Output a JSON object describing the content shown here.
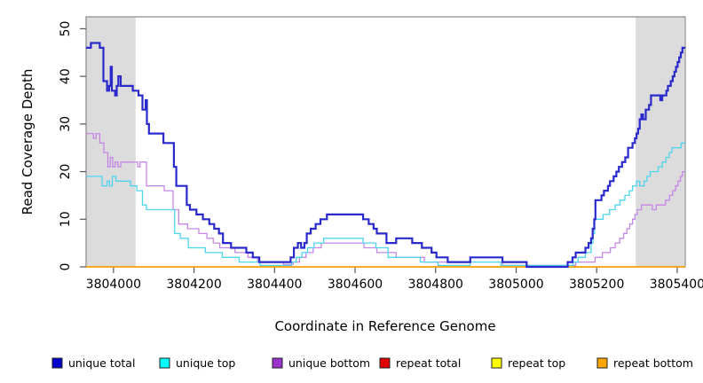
{
  "chart_data": {
    "type": "step-line",
    "title": "",
    "xlabel": "Coordinate in Reference Genome",
    "ylabel": "Read Coverage Depth",
    "xlim": [
      3803932,
      3805420
    ],
    "ylim": [
      0,
      52.5
    ],
    "x_ticks": [
      3804000,
      3804200,
      3804400,
      3804600,
      3804800,
      3805000,
      3805200,
      3805400
    ],
    "y_ticks": [
      0,
      10,
      20,
      30,
      40,
      50
    ],
    "grid": false,
    "legend_position": "bottom",
    "band_color": "#DCDCDC",
    "shaded_regions": [
      {
        "x0": 3803932,
        "x1": 3804055
      },
      {
        "x0": 3805297,
        "x1": 3805418
      }
    ],
    "series": [
      {
        "name": "repeat total",
        "color": "#E00000",
        "width": 1.2,
        "points": [
          [
            3803932,
            0
          ]
        ]
      },
      {
        "name": "repeat top",
        "color": "#FFFF00",
        "width": 1.2,
        "points": [
          [
            3803932,
            0
          ]
        ]
      },
      {
        "name": "repeat bottom",
        "color": "#FFA200",
        "width": 1.6,
        "points": [
          [
            3803932,
            0
          ]
        ]
      },
      {
        "name": "unique bottom",
        "color": "#C586E8",
        "width": 1.3,
        "points": [
          [
            3803932,
            28
          ],
          [
            3803950,
            27
          ],
          [
            3803957,
            28
          ],
          [
            3803966,
            26
          ],
          [
            3803976,
            24
          ],
          [
            3803986,
            21
          ],
          [
            3803992,
            23
          ],
          [
            3803998,
            21
          ],
          [
            3804004,
            22
          ],
          [
            3804011,
            21
          ],
          [
            3804018,
            22
          ],
          [
            3804060,
            21
          ],
          [
            3804066,
            22
          ],
          [
            3804082,
            17
          ],
          [
            3804126,
            16
          ],
          [
            3804148,
            12
          ],
          [
            3804162,
            9
          ],
          [
            3804184,
            8
          ],
          [
            3804212,
            7
          ],
          [
            3804232,
            6
          ],
          [
            3804248,
            5
          ],
          [
            3804264,
            4
          ],
          [
            3804302,
            3
          ],
          [
            3804334,
            2
          ],
          [
            3804358,
            1
          ],
          [
            3804422,
            0.5
          ],
          [
            3804446,
            1
          ],
          [
            3804462,
            2
          ],
          [
            3804478,
            3
          ],
          [
            3804496,
            4
          ],
          [
            3804516,
            5
          ],
          [
            3804622,
            4
          ],
          [
            3804654,
            3
          ],
          [
            3804702,
            2
          ],
          [
            3804772,
            1
          ],
          [
            3804886,
            2
          ],
          [
            3804966,
            0.3
          ],
          [
            3805148,
            1
          ],
          [
            3805196,
            2
          ],
          [
            3805214,
            3
          ],
          [
            3805234,
            4
          ],
          [
            3805246,
            5
          ],
          [
            3805257,
            6
          ],
          [
            3805267,
            7
          ],
          [
            3805275,
            8
          ],
          [
            3805282,
            9
          ],
          [
            3805289,
            10
          ],
          [
            3805295,
            11
          ],
          [
            3805301,
            12
          ],
          [
            3805311,
            13
          ],
          [
            3805338,
            12
          ],
          [
            3805348,
            13
          ],
          [
            3805371,
            14
          ],
          [
            3805381,
            15
          ],
          [
            3805389,
            16
          ],
          [
            3805396,
            17
          ],
          [
            3805402,
            18
          ],
          [
            3805408,
            19
          ],
          [
            3805413,
            20
          ]
        ]
      },
      {
        "name": "unique top",
        "color": "#4FD4EE",
        "width": 1.3,
        "points": [
          [
            3803932,
            19
          ],
          [
            3803972,
            17
          ],
          [
            3803984,
            18
          ],
          [
            3803990,
            17
          ],
          [
            3803997,
            19
          ],
          [
            3804006,
            18
          ],
          [
            3804042,
            17
          ],
          [
            3804058,
            16
          ],
          [
            3804072,
            13
          ],
          [
            3804082,
            12
          ],
          [
            3804152,
            7
          ],
          [
            3804166,
            6
          ],
          [
            3804186,
            4
          ],
          [
            3804228,
            3
          ],
          [
            3804270,
            2
          ],
          [
            3804312,
            1
          ],
          [
            3804364,
            0.3
          ],
          [
            3804442,
            1
          ],
          [
            3804454,
            2
          ],
          [
            3804468,
            3
          ],
          [
            3804482,
            4
          ],
          [
            3804498,
            5
          ],
          [
            3804522,
            6
          ],
          [
            3804620,
            5
          ],
          [
            3804652,
            4
          ],
          [
            3804682,
            2
          ],
          [
            3804762,
            1
          ],
          [
            3804806,
            0.3
          ],
          [
            3804886,
            1
          ],
          [
            3804962,
            0.3
          ],
          [
            3805142,
            1
          ],
          [
            3805154,
            2
          ],
          [
            3805172,
            3
          ],
          [
            3805186,
            5
          ],
          [
            3805191,
            7
          ],
          [
            3805195,
            10
          ],
          [
            3805216,
            11
          ],
          [
            3805232,
            12
          ],
          [
            3805246,
            13
          ],
          [
            3805258,
            14
          ],
          [
            3805270,
            15
          ],
          [
            3805281,
            16
          ],
          [
            3805289,
            17
          ],
          [
            3805299,
            18
          ],
          [
            3805307,
            17
          ],
          [
            3805318,
            18
          ],
          [
            3805325,
            19
          ],
          [
            3805333,
            20
          ],
          [
            3805353,
            21
          ],
          [
            3805363,
            22
          ],
          [
            3805372,
            23
          ],
          [
            3805380,
            24
          ],
          [
            3805387,
            25
          ],
          [
            3805410,
            26
          ]
        ]
      },
      {
        "name": "unique total",
        "color": "#2929CC",
        "width": 2.2,
        "points": [
          [
            3803932,
            46
          ],
          [
            3803944,
            47
          ],
          [
            3803966,
            46
          ],
          [
            3803975,
            39
          ],
          [
            3803984,
            37
          ],
          [
            3803989,
            38
          ],
          [
            3803993,
            42
          ],
          [
            3803996,
            37
          ],
          [
            3804004,
            36
          ],
          [
            3804008,
            38
          ],
          [
            3804012,
            40
          ],
          [
            3804018,
            38
          ],
          [
            3804048,
            37
          ],
          [
            3804062,
            36
          ],
          [
            3804072,
            33
          ],
          [
            3804080,
            35
          ],
          [
            3804083,
            30
          ],
          [
            3804088,
            28
          ],
          [
            3804124,
            26
          ],
          [
            3804150,
            21
          ],
          [
            3804156,
            17
          ],
          [
            3804182,
            13
          ],
          [
            3804190,
            12
          ],
          [
            3804206,
            11
          ],
          [
            3804222,
            10
          ],
          [
            3804238,
            9
          ],
          [
            3804250,
            8
          ],
          [
            3804262,
            7
          ],
          [
            3804272,
            5
          ],
          [
            3804292,
            4
          ],
          [
            3804330,
            3
          ],
          [
            3804346,
            2
          ],
          [
            3804362,
            1
          ],
          [
            3804440,
            2
          ],
          [
            3804448,
            4
          ],
          [
            3804458,
            5
          ],
          [
            3804466,
            4
          ],
          [
            3804474,
            5
          ],
          [
            3804480,
            7
          ],
          [
            3804490,
            8
          ],
          [
            3804502,
            9
          ],
          [
            3804514,
            10
          ],
          [
            3804530,
            11
          ],
          [
            3804620,
            10
          ],
          [
            3804634,
            9
          ],
          [
            3804646,
            8
          ],
          [
            3804654,
            7
          ],
          [
            3804678,
            5
          ],
          [
            3804702,
            6
          ],
          [
            3804742,
            5
          ],
          [
            3804766,
            4
          ],
          [
            3804790,
            3
          ],
          [
            3804802,
            2
          ],
          [
            3804830,
            1
          ],
          [
            3804886,
            2
          ],
          [
            3804966,
            1
          ],
          [
            3805026,
            0
          ],
          [
            3805128,
            1
          ],
          [
            3805140,
            2
          ],
          [
            3805148,
            3
          ],
          [
            3805172,
            4
          ],
          [
            3805180,
            5
          ],
          [
            3805186,
            6
          ],
          [
            3805190,
            8
          ],
          [
            3805194,
            10
          ],
          [
            3805197,
            14
          ],
          [
            3805212,
            15
          ],
          [
            3805218,
            16
          ],
          [
            3805228,
            17
          ],
          [
            3805233,
            18
          ],
          [
            3805242,
            19
          ],
          [
            3805249,
            20
          ],
          [
            3805255,
            21
          ],
          [
            3805263,
            22
          ],
          [
            3805271,
            23
          ],
          [
            3805278,
            25
          ],
          [
            3805289,
            26
          ],
          [
            3805295,
            27
          ],
          [
            3805299,
            28
          ],
          [
            3805303,
            29
          ],
          [
            3805307,
            31
          ],
          [
            3805311,
            32
          ],
          [
            3805315,
            31
          ],
          [
            3805322,
            33
          ],
          [
            3805330,
            34
          ],
          [
            3805335,
            36
          ],
          [
            3805358,
            35
          ],
          [
            3805363,
            36
          ],
          [
            3805373,
            37
          ],
          [
            3805377,
            38
          ],
          [
            3805384,
            39
          ],
          [
            3805389,
            40
          ],
          [
            3805393,
            41
          ],
          [
            3805397,
            42
          ],
          [
            3805401,
            43
          ],
          [
            3805405,
            44
          ],
          [
            3805409,
            45
          ],
          [
            3805413,
            46
          ]
        ]
      }
    ],
    "legend": [
      {
        "label": "unique total",
        "swatch_color": "#0000CC"
      },
      {
        "label": "unique top",
        "swatch_color": "#00FFFF"
      },
      {
        "label": "unique bottom",
        "swatch_color": "#9933CC"
      },
      {
        "label": "repeat total",
        "swatch_color": "#E00000"
      },
      {
        "label": "repeat top",
        "swatch_color": "#FFFF00"
      },
      {
        "label": "repeat bottom",
        "swatch_color": "#FFA500"
      }
    ]
  }
}
